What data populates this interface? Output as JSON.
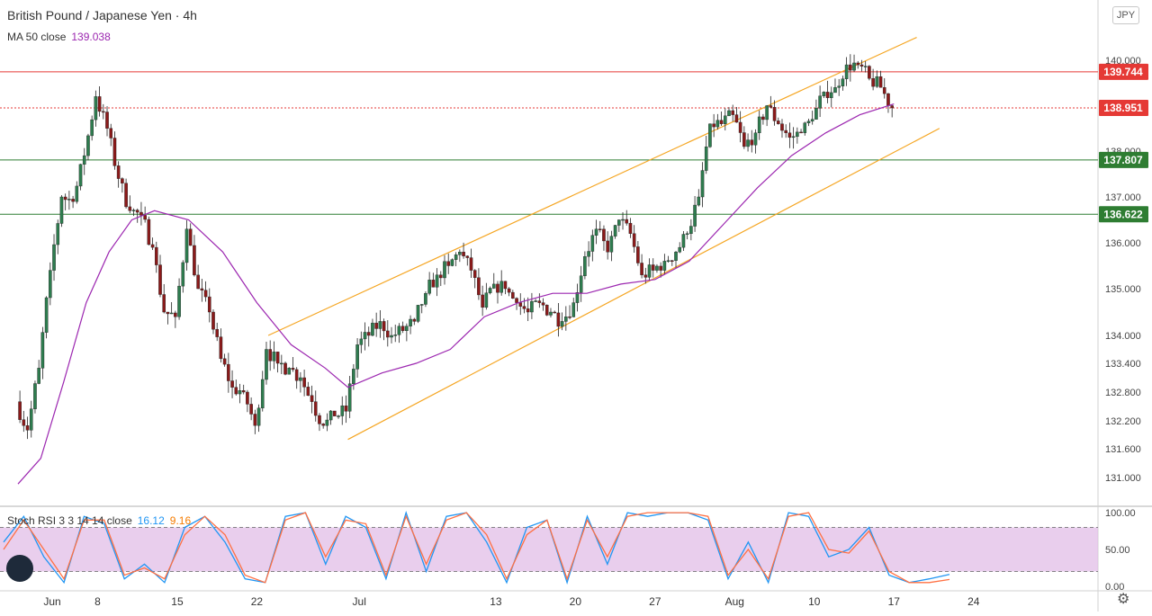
{
  "header": {
    "title": "British Pound / Japanese Yen · 4h",
    "ma_label": "MA 50 close",
    "ma_value": "139.038",
    "currency_badge": "JPY"
  },
  "stoch": {
    "label": "Stoch RSI 3 3 14 14 close",
    "k_value": "16.12",
    "d_value": "9.16"
  },
  "colors": {
    "up_candle": "#2e7d4f",
    "down_candle": "#8b1a1a",
    "ma": "#9c27b0",
    "channel": "#f5a623",
    "red_level": "#e53935",
    "green_level": "#2e7d32",
    "k_line": "#2196f3",
    "d_line": "#ff7043",
    "stoch_band": "#e1bee7"
  },
  "chart_data": [
    {
      "type": "candlestick",
      "title": "British Pound / Japanese Yen · 4h",
      "ylim": [
        130.6,
        141.1
      ],
      "y_ticks": [
        "131.000",
        "131.600",
        "132.200",
        "132.800",
        "133.400",
        "134.000",
        "135.000",
        "136.000",
        "137.000",
        "138.000",
        "140.000"
      ],
      "x_ticks": [
        "Jun",
        "8",
        "15",
        "22",
        "Jul",
        "13",
        "20",
        "27",
        "Aug",
        "10",
        "17",
        "24"
      ],
      "price_path": [
        [
          "2020-06-01",
          132.6
        ],
        [
          "2020-06-02",
          132.0
        ],
        [
          "2020-06-03",
          133.3
        ],
        [
          "2020-06-04",
          135.4
        ],
        [
          "2020-06-05",
          137.0
        ],
        [
          "2020-06-06",
          136.9
        ],
        [
          "2020-06-07",
          137.9
        ],
        [
          "2020-06-08",
          139.2
        ],
        [
          "2020-06-09",
          138.5
        ],
        [
          "2020-06-10",
          137.4
        ],
        [
          "2020-06-11",
          136.7
        ],
        [
          "2020-06-12",
          136.6
        ],
        [
          "2020-06-13",
          135.9
        ],
        [
          "2020-06-14",
          134.5
        ],
        [
          "2020-06-15",
          134.4
        ],
        [
          "2020-06-16",
          136.3
        ],
        [
          "2020-06-17",
          135.0
        ],
        [
          "2020-06-18",
          134.5
        ],
        [
          "2020-06-19",
          133.5
        ],
        [
          "2020-06-20",
          132.9
        ],
        [
          "2020-06-21",
          132.8
        ],
        [
          "2020-06-22",
          132.1
        ],
        [
          "2020-06-23",
          133.7
        ],
        [
          "2020-06-24",
          133.4
        ],
        [
          "2020-06-25",
          133.3
        ],
        [
          "2020-06-26",
          133.1
        ],
        [
          "2020-06-27",
          132.6
        ],
        [
          "2020-06-28",
          132.1
        ],
        [
          "2020-06-29",
          132.3
        ],
        [
          "2020-06-30",
          132.4
        ],
        [
          "2020-07-01",
          133.8
        ],
        [
          "2020-07-02",
          134.0
        ],
        [
          "2020-07-03",
          134.3
        ],
        [
          "2020-07-04",
          134.0
        ],
        [
          "2020-07-05",
          134.1
        ],
        [
          "2020-07-06",
          134.3
        ],
        [
          "2020-07-07",
          134.9
        ],
        [
          "2020-07-08",
          135.3
        ],
        [
          "2020-07-09",
          135.5
        ],
        [
          "2020-07-10",
          135.8
        ],
        [
          "2020-07-11",
          135.4
        ],
        [
          "2020-07-12",
          134.6
        ],
        [
          "2020-07-13",
          135.1
        ],
        [
          "2020-07-14",
          135.0
        ],
        [
          "2020-07-15",
          134.7
        ],
        [
          "2020-07-16",
          134.5
        ],
        [
          "2020-07-17",
          134.7
        ],
        [
          "2020-07-18",
          134.5
        ],
        [
          "2020-07-19",
          134.3
        ],
        [
          "2020-07-20",
          134.7
        ],
        [
          "2020-07-21",
          135.7
        ],
        [
          "2020-07-22",
          136.3
        ],
        [
          "2020-07-23",
          135.8
        ],
        [
          "2020-07-24",
          136.5
        ],
        [
          "2020-07-25",
          136.2
        ],
        [
          "2020-07-26",
          135.3
        ],
        [
          "2020-07-27",
          135.4
        ],
        [
          "2020-07-28",
          135.6
        ],
        [
          "2020-07-29",
          135.8
        ],
        [
          "2020-07-30",
          136.2
        ],
        [
          "2020-07-31",
          137.0
        ],
        [
          "2020-08-01",
          138.6
        ],
        [
          "2020-08-02",
          138.6
        ],
        [
          "2020-08-03",
          138.8
        ],
        [
          "2020-08-04",
          138.1
        ],
        [
          "2020-08-05",
          138.4
        ],
        [
          "2020-08-06",
          139.0
        ],
        [
          "2020-08-07",
          138.6
        ],
        [
          "2020-08-08",
          138.3
        ],
        [
          "2020-08-09",
          138.4
        ],
        [
          "2020-08-10",
          138.7
        ],
        [
          "2020-08-11",
          139.3
        ],
        [
          "2020-08-12",
          139.4
        ],
        [
          "2020-08-13",
          139.9
        ],
        [
          "2020-08-14",
          139.9
        ],
        [
          "2020-08-15",
          139.6
        ],
        [
          "2020-08-16",
          139.4
        ],
        [
          "2020-08-17",
          138.951
        ]
      ],
      "ma50": [
        [
          "2020-06-01",
          130.9
        ],
        [
          "2020-06-03",
          131.4
        ],
        [
          "2020-06-05",
          133.0
        ],
        [
          "2020-06-07",
          134.7
        ],
        [
          "2020-06-09",
          135.8
        ],
        [
          "2020-06-11",
          136.5
        ],
        [
          "2020-06-13",
          136.7
        ],
        [
          "2020-06-16",
          136.5
        ],
        [
          "2020-06-19",
          135.8
        ],
        [
          "2020-06-22",
          134.7
        ],
        [
          "2020-06-25",
          133.8
        ],
        [
          "2020-06-28",
          133.3
        ],
        [
          "2020-06-30",
          132.9
        ],
        [
          "2020-07-03",
          133.2
        ],
        [
          "2020-07-06",
          133.4
        ],
        [
          "2020-07-09",
          133.7
        ],
        [
          "2020-07-12",
          134.4
        ],
        [
          "2020-07-15",
          134.7
        ],
        [
          "2020-07-18",
          134.9
        ],
        [
          "2020-07-21",
          134.9
        ],
        [
          "2020-07-24",
          135.1
        ],
        [
          "2020-07-27",
          135.2
        ],
        [
          "2020-07-30",
          135.6
        ],
        [
          "2020-08-02",
          136.4
        ],
        [
          "2020-08-05",
          137.2
        ],
        [
          "2020-08-08",
          137.9
        ],
        [
          "2020-08-11",
          138.4
        ],
        [
          "2020-08-14",
          138.8
        ],
        [
          "2020-08-17",
          139.038
        ]
      ],
      "channel_upper": [
        [
          "2020-06-23",
          134.0
        ],
        [
          "2020-08-19",
          140.5
        ]
      ],
      "channel_lower": [
        [
          "2020-06-30",
          131.8
        ],
        [
          "2020-08-21",
          138.5
        ]
      ],
      "levels": [
        {
          "value": 139.744,
          "label": "139.744",
          "color": "red",
          "style": "solid"
        },
        {
          "value": 138.951,
          "label": "138.951",
          "color": "red",
          "style": "dotted"
        },
        {
          "value": 137.807,
          "label": "137.807",
          "color": "green",
          "style": "solid"
        },
        {
          "value": 136.622,
          "label": "136.622",
          "color": "green",
          "style": "solid"
        }
      ]
    },
    {
      "type": "line",
      "title": "Stoch RSI 3 3 14 14 close",
      "ylim": [
        -5,
        105
      ],
      "y_ticks": [
        "100.00",
        "50.00",
        "0.00"
      ],
      "band": [
        20,
        80
      ],
      "series": [
        {
          "name": "K",
          "values": [
            60,
            95,
            40,
            5,
            95,
            85,
            10,
            30,
            5,
            80,
            95,
            60,
            10,
            5,
            95,
            100,
            30,
            95,
            80,
            10,
            100,
            20,
            95,
            100,
            60,
            5,
            80,
            90,
            5,
            95,
            30,
            100,
            95,
            100,
            100,
            90,
            10,
            60,
            5,
            100,
            95,
            40,
            50,
            80,
            15,
            5,
            10,
            16.12
          ]
        },
        {
          "name": "D",
          "values": [
            50,
            90,
            50,
            10,
            90,
            90,
            15,
            25,
            10,
            70,
            95,
            70,
            15,
            5,
            90,
            100,
            40,
            90,
            85,
            15,
            95,
            30,
            90,
            100,
            70,
            10,
            70,
            90,
            10,
            90,
            40,
            95,
            100,
            100,
            100,
            95,
            15,
            50,
            10,
            95,
            100,
            50,
            45,
            75,
            20,
            5,
            5,
            9.16
          ]
        }
      ]
    }
  ]
}
